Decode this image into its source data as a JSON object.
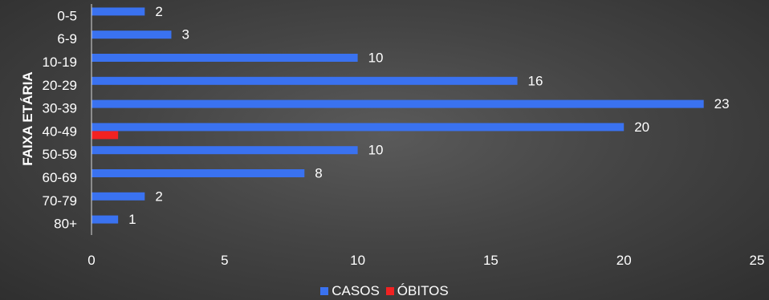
{
  "colors": {
    "casos": "#3a72f0",
    "obitos": "#f22222",
    "text": "#ffffff",
    "axis": "#d9d9d9"
  },
  "chart_data": {
    "type": "bar",
    "orientation": "horizontal",
    "title": "",
    "ylabel": "FAIXA ETÁRIA",
    "xlabel": "",
    "categories": [
      "0-5",
      "6-9",
      "10-19",
      "20-29",
      "30-39",
      "40-49",
      "50-59",
      "60-69",
      "70-79",
      "80+"
    ],
    "series": [
      {
        "name": "CASOS",
        "values": [
          2,
          3,
          10,
          16,
          23,
          20,
          10,
          8,
          2,
          1
        ]
      },
      {
        "name": "ÓBITOS",
        "values": [
          0,
          0,
          0,
          0,
          0,
          1,
          0,
          0,
          0,
          0
        ]
      }
    ],
    "data_labels": [
      "2",
      "3",
      "10",
      "16",
      "23",
      "20",
      "10",
      "8",
      "2",
      "1"
    ],
    "xlim": [
      0,
      25
    ],
    "xticks": [
      0,
      5,
      10,
      15,
      20,
      25
    ],
    "grid": false,
    "legend": {
      "position": "bottom",
      "entries": [
        "CASOS",
        "ÓBITOS"
      ]
    }
  }
}
